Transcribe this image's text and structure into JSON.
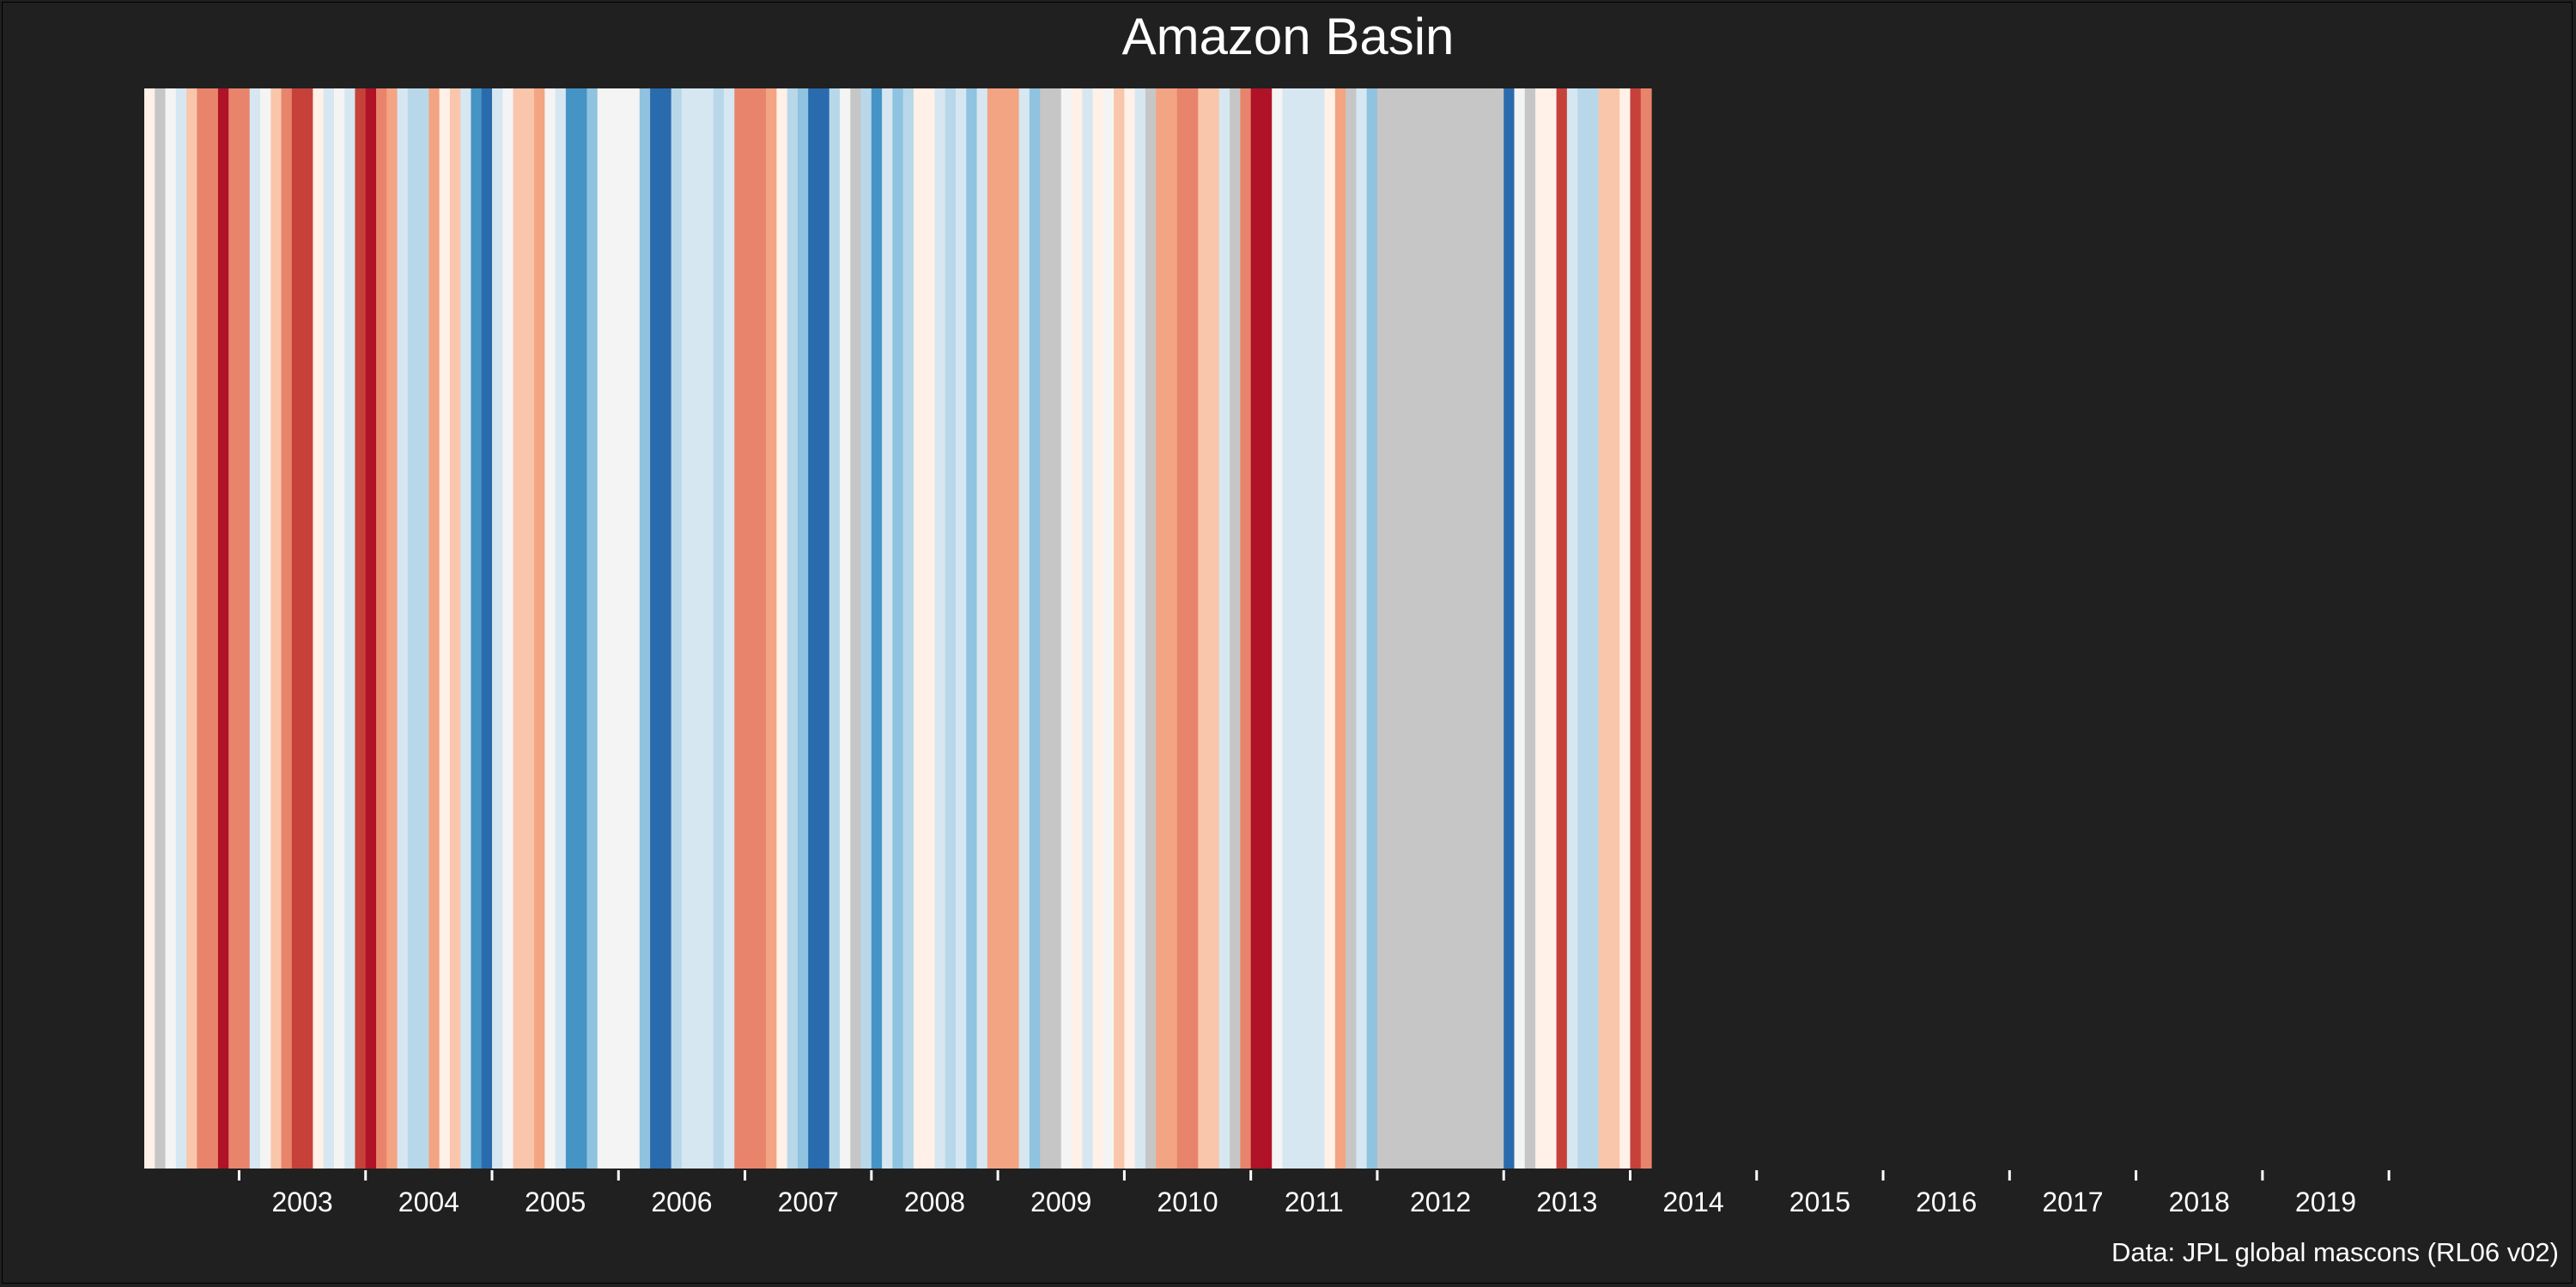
{
  "chart_data": {
    "type": "heatmap",
    "title": "Amazon Basin",
    "xlabel": "",
    "ylabel": "",
    "source": "Data: JPL global mascons (RL06 v02)",
    "grid": false,
    "legend": "none",
    "colorscale": "RdBu (red = low, blue = high), grey = missing data",
    "xlim": [
      2002.25,
      2020.42
    ],
    "x_ticks": [
      2003,
      2004,
      2005,
      2006,
      2007,
      2008,
      2009,
      2010,
      2011,
      2012,
      2013,
      2014,
      2015,
      2016,
      2017,
      2018,
      2019
    ],
    "tick_labels": [
      "2003",
      "2004",
      "2005",
      "2006",
      "2007",
      "2008",
      "2009",
      "2010",
      "2011",
      "2012",
      "2013",
      "2014",
      "2015",
      "2016",
      "2017",
      "2018",
      "2019"
    ],
    "period_months": 1,
    "colors": [
      "#fff0e8",
      "#c6c6c6",
      "#f4f4f4",
      "#d6e7f1",
      "#f9c6ab",
      "#e8846b",
      "#e8846b",
      "#b01227",
      "#e8846b",
      "#e8846b",
      "#d6e7f1",
      "#f4f4f4",
      "#f9c6ab",
      "#e8846b",
      "#c7413b",
      "#c7413b",
      "#fff0e8",
      "#d6e7f1",
      "#f4f4f4",
      "#d6e7f1",
      "#c7413b",
      "#b01227",
      "#e8846b",
      "#f3a482",
      "#d6e7f1",
      "#b8d8ea",
      "#b8d8ea",
      "#f3a482",
      "#fff0e8",
      "#f9c6ab",
      "#d6e7f1",
      "#4694c6",
      "#2a6bae",
      "#d6e7f1",
      "#f4f4f4",
      "#f9c6ab",
      "#f9c6ab",
      "#f3a482",
      "#f4f4f4",
      "#d6e7f1",
      "#4694c6",
      "#4694c6",
      "#8fc3df",
      "#f4f4f4",
      "#f4f4f4",
      "#f4f4f4",
      "#f4f4f4",
      "#8fc3df",
      "#2a6bae",
      "#2a6bae",
      "#b8d8ea",
      "#d6e7f1",
      "#d6e7f1",
      "#d6e7f1",
      "#b8d8ea",
      "#d6e7f1",
      "#e8846b",
      "#e8846b",
      "#e8846b",
      "#f3a482",
      "#fff0e8",
      "#b8d8ea",
      "#8fc3df",
      "#2a6bae",
      "#2a6bae",
      "#b8d8ea",
      "#f4f4f4",
      "#c6c6c6",
      "#b8d8ea",
      "#4694c6",
      "#d6e7f1",
      "#8fc3df",
      "#b8d8ea",
      "#fff0e8",
      "#fff0e8",
      "#d6e7f1",
      "#b8d8ea",
      "#d6e7f1",
      "#8fc3df",
      "#d6e7f1",
      "#f3a482",
      "#f3a482",
      "#f3a482",
      "#d6e7f1",
      "#8fc3df",
      "#c6c6c6",
      "#c6c6c6",
      "#f4f4f4",
      "#fff0e8",
      "#d6e7f1",
      "#fff0e8",
      "#f4f4f4",
      "#f9c6ab",
      "#fff0e8",
      "#d6e7f1",
      "#c6c6c6",
      "#f3a482",
      "#f3a482",
      "#e8846b",
      "#e8846b",
      "#f9c6ab",
      "#f9c6ab",
      "#d6e7f1",
      "#c6c6c6",
      "#e8846b",
      "#b01227",
      "#b01227",
      "#f4f4f4",
      "#d6e7f1",
      "#d6e7f1",
      "#d6e7f1",
      "#d6e7f1",
      "#fff0e8",
      "#f3a482",
      "#c6c6c6",
      "#d6e7f1",
      "#8fc3df",
      "#c6c6c6",
      "#c6c6c6",
      "#c6c6c6",
      "#c6c6c6",
      "#c6c6c6",
      "#c6c6c6",
      "#c6c6c6",
      "#c6c6c6",
      "#c6c6c6",
      "#c6c6c6",
      "#c6c6c6",
      "#c6c6c6",
      "#2a6bae",
      "#f4f4f4",
      "#c6c6c6",
      "#fff0e8",
      "#fff0e8",
      "#c7413b",
      "#d6e7f1",
      "#b8d8ea",
      "#b8d8ea",
      "#f9c6ab",
      "#f9c6ab",
      "#fff0e8",
      "#c7413b",
      "#e8846b"
    ]
  }
}
